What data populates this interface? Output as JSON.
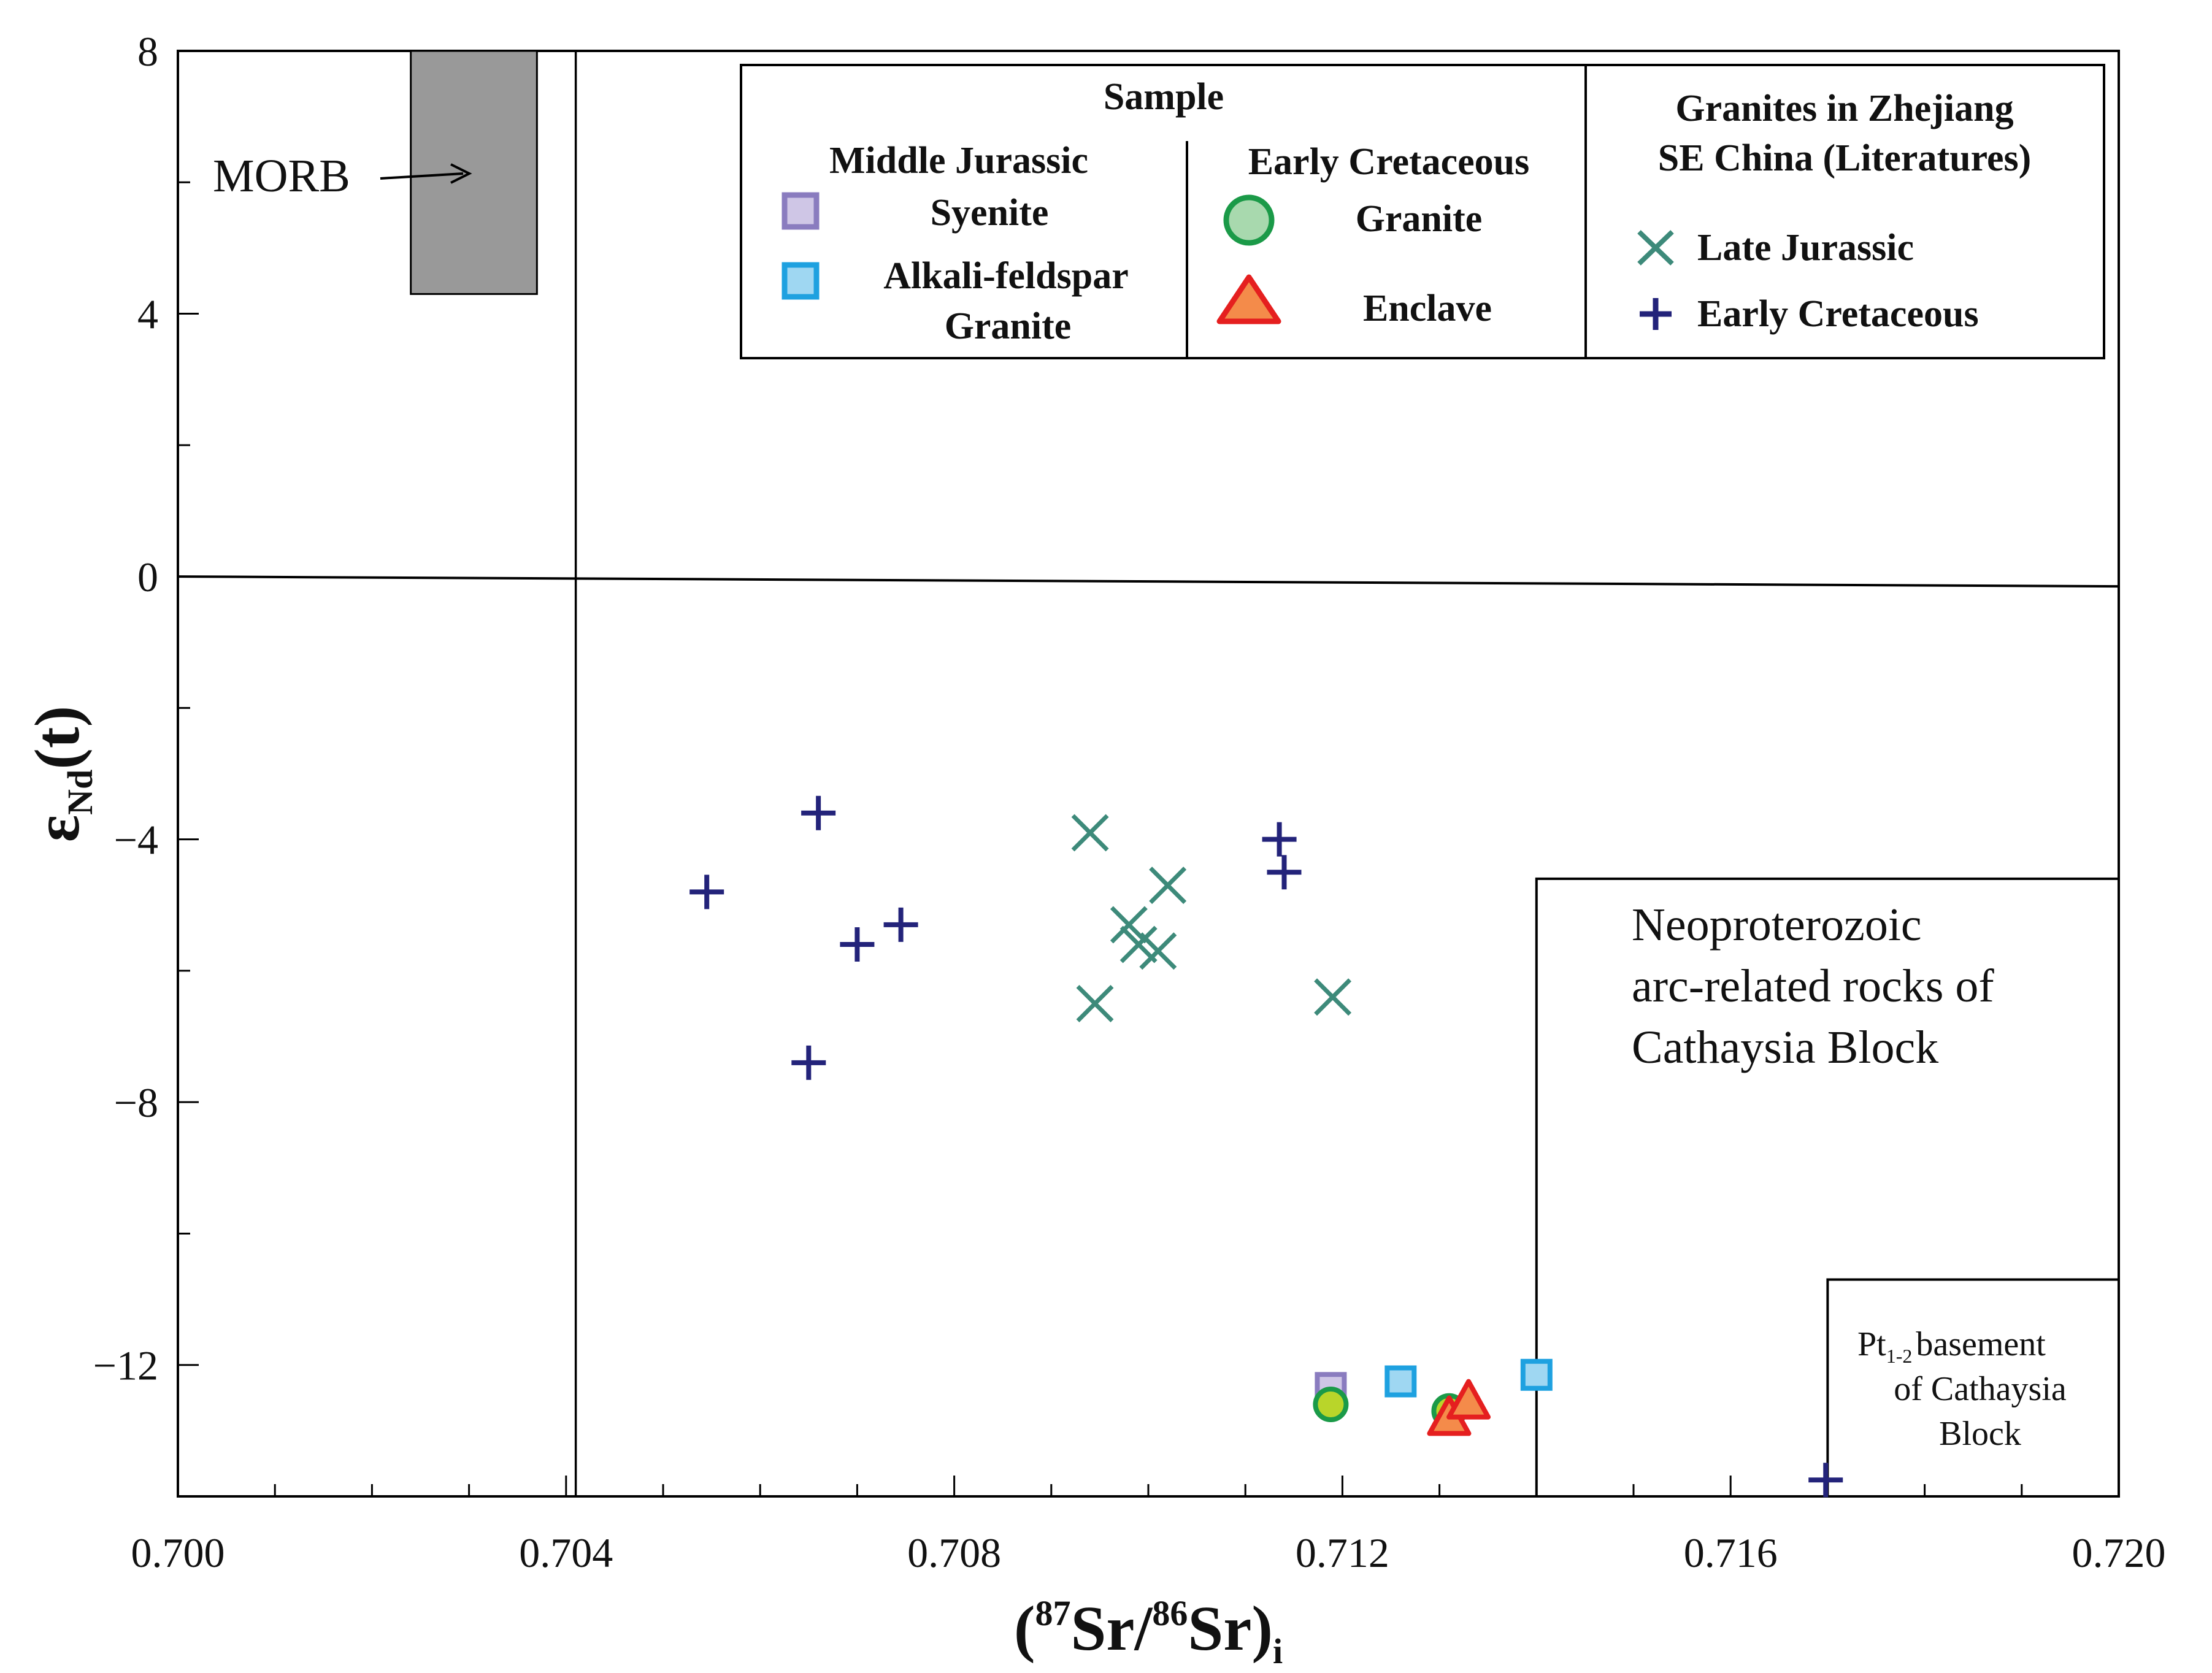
{
  "chart_data": {
    "type": "scatter",
    "xlabel": "(87Sr/86Sr)i",
    "ylabel": "εNd(t)",
    "xlim": [
      0.7,
      0.72
    ],
    "ylim": [
      -14,
      8
    ],
    "x_ticks": [
      "0.700",
      "0.704",
      "0.708",
      "0.712",
      "0.716",
      "0.720"
    ],
    "y_ticks": [
      "8",
      "4",
      "0",
      "−4",
      "−8",
      "−12"
    ],
    "axis_title_parts": {
      "x_prefix": "(",
      "x_sup1": "87",
      "x_mid": "Sr/",
      "x_sup2": "86",
      "x_tail": "Sr)",
      "x_sub": "i",
      "y_main": "ε",
      "y_sub": "Nd",
      "y_tail": "(t)"
    },
    "legend": {
      "title": "Sample",
      "group1_title": "Middle Jurassic",
      "group1_item1": "Syenite",
      "group1_item2_line1": "Alkali-feldspar",
      "group1_item2_line2": "Granite",
      "group2_title": "Early Cretaceous",
      "group2_item1": "Granite",
      "group2_item2": "Enclave",
      "lit_title_line1": "Granites in Zhejiang",
      "lit_title_line2": "SE China (Literatures)",
      "lit_item1": "Late Jurassic",
      "lit_item2": "Early Cretaceous"
    },
    "regions": {
      "morb_label": "MORB",
      "morb_x_range": [
        0.7024,
        0.7037
      ],
      "morb_y_range": [
        4.3,
        8
      ],
      "arc_line1": "Neoproterozoic",
      "arc_line2": "arc-related rocks of",
      "arc_line3": "Cathaysia Block",
      "arc_x_range": [
        0.714,
        0.72
      ],
      "arc_y_range": [
        -14,
        -4.6
      ],
      "basement_prefix": "Pt",
      "basement_sub": "1-2",
      "basement_line1": "basement",
      "basement_line2": "of Cathaysia",
      "basement_line3": "Block",
      "basement_x_range": [
        0.717,
        0.72
      ],
      "basement_y_range": [
        -14,
        -10.7
      ],
      "vertical_ref_x": 0.7041,
      "zero_line": [
        [
          0.7,
          0.0
        ],
        [
          0.72,
          -0.15
        ]
      ]
    },
    "series": [
      {
        "name": "Syenite (Middle Jurassic)",
        "marker": "square",
        "fill": "#cfc6e6",
        "stroke": "#8a7cbf",
        "points": [
          [
            0.71188,
            -12.35
          ]
        ]
      },
      {
        "name": "Alkali-feldspar Granite (Middle Jurassic)",
        "marker": "square",
        "fill": "#9fd7f2",
        "stroke": "#1ea1e0",
        "points": [
          [
            0.7126,
            -12.25
          ],
          [
            0.714,
            -12.15
          ]
        ]
      },
      {
        "name": "Granite (Early Cretaceous)",
        "marker": "circle",
        "fill": "#b9d52a",
        "stroke": "#1b9a48",
        "points": [
          [
            0.71188,
            -12.6
          ],
          [
            0.7131,
            -12.7
          ]
        ]
      },
      {
        "name": "Enclave (Early Cretaceous)",
        "marker": "triangle",
        "fill": "#f48b4a",
        "stroke": "#e51f1f",
        "points": [
          [
            0.7131,
            -12.8
          ],
          [
            0.7133,
            -12.55
          ]
        ]
      },
      {
        "name": "Late Jurassic (Literatures)",
        "marker": "x",
        "stroke": "#3d8a7a",
        "points": [
          [
            0.7094,
            -3.9
          ],
          [
            0.7098,
            -5.3
          ],
          [
            0.7099,
            -5.6
          ],
          [
            0.7102,
            -4.7
          ],
          [
            0.7101,
            -5.7
          ],
          [
            0.70945,
            -6.5
          ],
          [
            0.7119,
            -6.4
          ]
        ]
      },
      {
        "name": "Early Cretaceous (Literatures)",
        "marker": "plus",
        "stroke": "#23237a",
        "points": [
          [
            0.70545,
            -4.8
          ],
          [
            0.7066,
            -3.6
          ],
          [
            0.707,
            -5.6
          ],
          [
            0.70745,
            -5.3
          ],
          [
            0.7065,
            -7.4
          ],
          [
            0.71135,
            -4.0
          ],
          [
            0.7114,
            -4.5
          ],
          [
            0.71698,
            -13.75
          ]
        ]
      }
    ]
  }
}
